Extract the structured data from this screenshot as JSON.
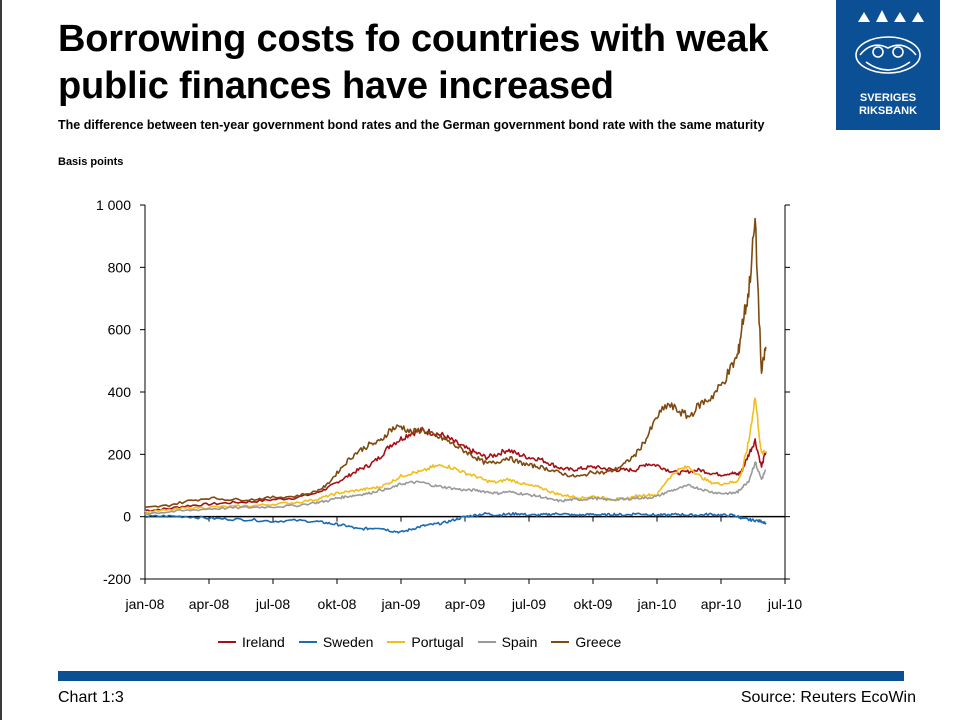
{
  "title": "Borrowing costs fo countries with weak public finances have increased",
  "subtitle": "The difference between ten-year government bond rates and the German government bond rate with the same maturity",
  "unit": "Basis points",
  "logo": {
    "line1": "SVERIGES",
    "line2": "RIKSBANK"
  },
  "footer": {
    "left": "Chart 1:3",
    "right": "Source: Reuters EcoWin"
  },
  "chart_data": {
    "type": "line",
    "x_ticks": [
      "jan-08",
      "apr-08",
      "jul-08",
      "okt-08",
      "jan-09",
      "apr-09",
      "jul-09",
      "okt-09",
      "jan-10",
      "apr-10",
      "jul-10"
    ],
    "y_ticks": [
      "1 000",
      "800",
      "600",
      "400",
      "200",
      "0",
      "-200"
    ],
    "ylim": [
      -200,
      1000
    ],
    "x_unit": "months since jan-08",
    "xlim": [
      0,
      30
    ],
    "grid": false,
    "legend_position": "bottom",
    "series": [
      {
        "name": "Ireland",
        "color": "#a50f15",
        "x": [
          0,
          1,
          2,
          3,
          4,
          5,
          6,
          7,
          8,
          8.5,
          9,
          9.5,
          10,
          10.5,
          11,
          11.5,
          12,
          12.5,
          13,
          13.5,
          14,
          14.5,
          15,
          15.5,
          16,
          16.5,
          17,
          17.5,
          18,
          18.5,
          19,
          19.5,
          20,
          20.5,
          21,
          21.5,
          22,
          22.5,
          23,
          23.5,
          24,
          24.5,
          25,
          25.5,
          26,
          26.5,
          27,
          27.5,
          27.8,
          28,
          28.3,
          28.6,
          28.9,
          29.1
        ],
        "y": [
          20,
          25,
          35,
          40,
          45,
          48,
          55,
          60,
          75,
          90,
          110,
          130,
          150,
          165,
          190,
          230,
          250,
          270,
          275,
          270,
          260,
          240,
          220,
          205,
          190,
          200,
          215,
          200,
          190,
          185,
          170,
          155,
          150,
          155,
          160,
          155,
          150,
          150,
          150,
          170,
          165,
          150,
          140,
          145,
          150,
          140,
          135,
          140,
          135,
          150,
          200,
          245,
          160,
          210
        ]
      },
      {
        "name": "Sweden",
        "color": "#1c6ab0",
        "x": [
          0,
          1,
          2,
          3,
          4,
          5,
          6,
          7,
          8,
          8.5,
          9,
          9.5,
          10,
          10.5,
          11,
          11.5,
          12,
          12.5,
          13,
          13.5,
          14,
          14.5,
          15,
          15.5,
          16,
          16.5,
          17,
          17.5,
          18,
          18.5,
          19,
          19.5,
          20,
          20.5,
          21,
          21.5,
          22,
          22.5,
          23,
          23.5,
          24,
          24.5,
          25,
          25.5,
          26,
          26.5,
          27,
          27.5,
          27.8,
          28,
          28.3,
          28.6,
          28.9,
          29.1
        ],
        "y": [
          0,
          2,
          0,
          -5,
          -8,
          -10,
          -15,
          -12,
          -15,
          -20,
          -25,
          -30,
          -40,
          -38,
          -35,
          -45,
          -50,
          -40,
          -30,
          -25,
          -20,
          -10,
          0,
          5,
          10,
          5,
          8,
          10,
          5,
          5,
          8,
          10,
          5,
          5,
          8,
          5,
          8,
          5,
          10,
          8,
          5,
          5,
          8,
          5,
          5,
          8,
          5,
          5,
          0,
          -5,
          -10,
          -12,
          -15,
          -20
        ]
      },
      {
        "name": "Portugal",
        "color": "#f2be1a",
        "x": [
          0,
          1,
          2,
          3,
          4,
          5,
          6,
          7,
          8,
          8.5,
          9,
          9.5,
          10,
          10.5,
          11,
          11.5,
          12,
          12.5,
          13,
          13.5,
          14,
          14.5,
          15,
          15.5,
          16,
          16.5,
          17,
          17.5,
          18,
          18.5,
          19,
          19.5,
          20,
          20.5,
          21,
          21.5,
          22,
          22.5,
          23,
          23.5,
          24,
          24.5,
          25,
          25.5,
          26,
          26.5,
          27,
          27.5,
          27.8,
          28,
          28.3,
          28.6,
          28.9,
          29.1
        ],
        "y": [
          15,
          20,
          28,
          30,
          32,
          35,
          40,
          45,
          55,
          65,
          75,
          80,
          85,
          90,
          95,
          110,
          130,
          140,
          145,
          160,
          165,
          155,
          140,
          130,
          115,
          110,
          120,
          110,
          100,
          95,
          80,
          70,
          65,
          60,
          65,
          60,
          55,
          58,
          65,
          70,
          70,
          120,
          150,
          160,
          130,
          110,
          105,
          110,
          115,
          150,
          240,
          385,
          200,
          210
        ]
      },
      {
        "name": "Spain",
        "color": "#9a9a9a",
        "x": [
          0,
          1,
          2,
          3,
          4,
          5,
          6,
          7,
          8,
          8.5,
          9,
          9.5,
          10,
          10.5,
          11,
          11.5,
          12,
          12.5,
          13,
          13.5,
          14,
          14.5,
          15,
          15.5,
          16,
          16.5,
          17,
          17.5,
          18,
          18.5,
          19,
          19.5,
          20,
          20.5,
          21,
          21.5,
          22,
          22.5,
          23,
          23.5,
          24,
          24.5,
          25,
          25.5,
          26,
          26.5,
          27,
          27.5,
          27.8,
          28,
          28.3,
          28.6,
          28.9,
          29.1
        ],
        "y": [
          10,
          15,
          20,
          25,
          28,
          30,
          32,
          35,
          45,
          50,
          60,
          65,
          70,
          75,
          85,
          90,
          105,
          110,
          110,
          100,
          95,
          90,
          85,
          85,
          80,
          75,
          80,
          75,
          70,
          65,
          55,
          50,
          55,
          55,
          60,
          55,
          55,
          55,
          60,
          60,
          65,
          80,
          90,
          100,
          90,
          80,
          75,
          75,
          80,
          95,
          115,
          175,
          120,
          150
        ]
      },
      {
        "name": "Greece",
        "color": "#7f4a0f",
        "x": [
          0,
          1,
          2,
          3,
          4,
          5,
          6,
          7,
          8,
          8.5,
          9,
          9.5,
          10,
          10.5,
          11,
          11.5,
          12,
          12.5,
          13,
          13.5,
          14,
          14.5,
          15,
          15.5,
          16,
          16.5,
          17,
          17.5,
          18,
          18.5,
          19,
          19.5,
          20,
          20.5,
          21,
          21.5,
          22,
          22.5,
          23,
          23.5,
          24,
          24.5,
          25,
          25.5,
          26,
          26.5,
          27,
          27.5,
          27.8,
          28,
          28.3,
          28.6,
          28.9,
          29.1
        ],
        "y": [
          28,
          35,
          50,
          60,
          55,
          55,
          62,
          65,
          80,
          100,
          140,
          180,
          210,
          230,
          240,
          280,
          290,
          270,
          280,
          260,
          250,
          230,
          210,
          190,
          170,
          175,
          190,
          175,
          165,
          160,
          150,
          140,
          130,
          130,
          145,
          140,
          150,
          170,
          200,
          250,
          320,
          360,
          340,
          320,
          360,
          380,
          420,
          480,
          520,
          620,
          720,
          950,
          460,
          545
        ]
      }
    ]
  }
}
